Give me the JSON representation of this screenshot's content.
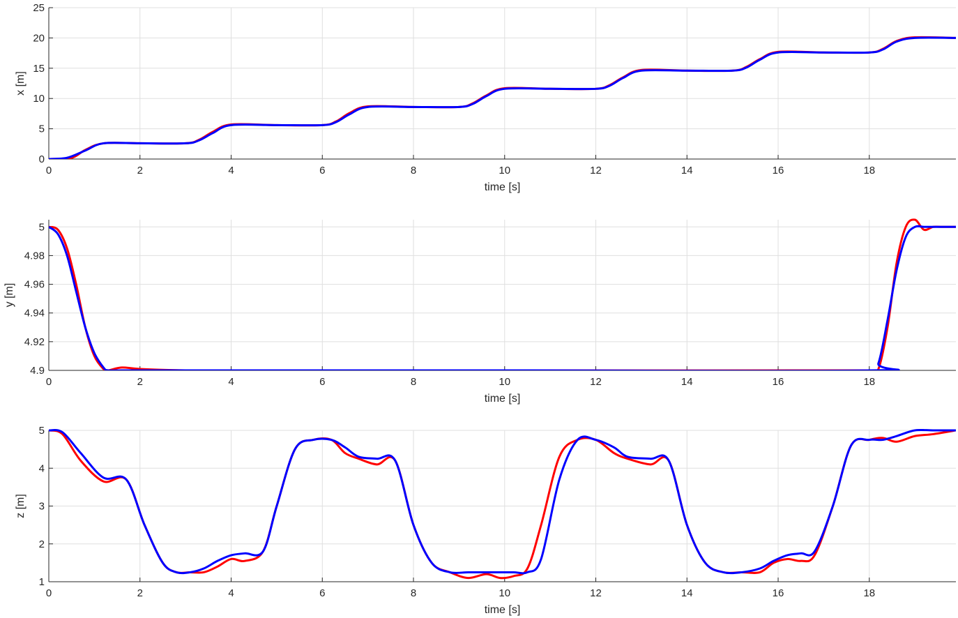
{
  "chart_data": [
    {
      "type": "line",
      "xlabel": "time [s]",
      "ylabel": "x [m]",
      "xlim": [
        0,
        19.9
      ],
      "ylim": [
        0,
        25
      ],
      "xticks": [
        0,
        2,
        4,
        6,
        8,
        10,
        12,
        14,
        16,
        18
      ],
      "yticks": [
        0,
        5,
        10,
        15,
        20,
        25
      ],
      "xtick_labels": [
        "0",
        "2",
        "4",
        "6",
        "8",
        "10",
        "12",
        "14",
        "16",
        "18"
      ],
      "ytick_labels": [
        "0",
        "5",
        "10",
        "15",
        "20",
        "25"
      ],
      "grid": true,
      "series": [
        {
          "color": "#ff0000",
          "x": [
            0,
            0.5,
            0.8,
            1.2,
            2,
            3,
            3.3,
            3.6,
            4,
            5,
            6,
            6.3,
            6.6,
            7,
            8,
            9,
            9.3,
            9.6,
            10,
            11,
            12,
            12.3,
            12.6,
            13,
            14,
            15,
            15.3,
            15.6,
            16,
            17,
            18,
            18.3,
            18.6,
            19,
            19.9
          ],
          "y": [
            0,
            0.2,
            1.5,
            2.6,
            2.6,
            2.6,
            3.2,
            4.5,
            5.7,
            5.6,
            5.6,
            6.2,
            7.6,
            8.7,
            8.6,
            8.6,
            9.2,
            10.5,
            11.7,
            11.6,
            11.6,
            12.2,
            13.5,
            14.7,
            14.6,
            14.6,
            15.2,
            16.5,
            17.7,
            17.6,
            17.6,
            18.2,
            19.5,
            20.1,
            20
          ]
        },
        {
          "color": "#0000ff",
          "x": [
            0,
            0.4,
            0.8,
            1.2,
            2,
            3,
            3.3,
            3.6,
            4,
            5,
            6,
            6.3,
            6.6,
            7,
            8,
            9,
            9.3,
            9.6,
            10,
            11,
            12,
            12.3,
            12.6,
            13,
            14,
            15,
            15.3,
            15.6,
            16,
            17,
            18,
            18.3,
            18.6,
            19,
            19.9
          ],
          "y": [
            0,
            0.2,
            1.4,
            2.6,
            2.6,
            2.6,
            3.1,
            4.3,
            5.6,
            5.6,
            5.6,
            6.1,
            7.4,
            8.6,
            8.6,
            8.6,
            9.1,
            10.4,
            11.6,
            11.6,
            11.6,
            12.1,
            13.4,
            14.6,
            14.6,
            14.6,
            15.1,
            16.4,
            17.6,
            17.6,
            17.6,
            18.1,
            19.4,
            20,
            20
          ]
        }
      ]
    },
    {
      "type": "line",
      "xlabel": "time [s]",
      "ylabel": "y [m]",
      "xlim": [
        0,
        19.9
      ],
      "ylim": [
        4.9,
        5.005
      ],
      "xticks": [
        0,
        2,
        4,
        6,
        8,
        10,
        12,
        14,
        16,
        18
      ],
      "yticks": [
        4.9,
        4.92,
        4.94,
        4.96,
        4.98,
        5
      ],
      "xtick_labels": [
        "0",
        "2",
        "4",
        "6",
        "8",
        "10",
        "12",
        "14",
        "16",
        "18"
      ],
      "ytick_labels": [
        "4.9",
        "4.92",
        "4.94",
        "4.96",
        "4.98",
        "5"
      ],
      "grid": true,
      "series": [
        {
          "color": "#ff0000",
          "x": [
            0,
            0.2,
            0.4,
            0.6,
            0.8,
            1.0,
            1.2,
            1.3,
            1.6,
            2,
            3,
            4,
            10,
            18,
            18.2,
            18.4,
            18.6,
            18.8,
            19.0,
            19.2,
            19.4,
            19.6,
            19.9
          ],
          "y": [
            5,
            4.998,
            4.985,
            4.96,
            4.93,
            4.91,
            4.901,
            4.9,
            4.902,
            4.901,
            4.9,
            4.9,
            4.9,
            4.9,
            4.901,
            4.93,
            4.975,
            5.0,
            5.005,
            4.998,
            5.0,
            5,
            5
          ]
        },
        {
          "color": "#0000ff",
          "x": [
            0,
            0.2,
            0.4,
            0.6,
            0.8,
            1.0,
            1.2,
            1.3,
            1.6,
            2,
            3,
            4,
            10,
            18,
            18.2,
            18.4,
            18.6,
            18.8,
            19.0,
            19.2,
            19.4,
            19.6,
            19.9
          ],
          "y": [
            5,
            4.995,
            4.98,
            4.955,
            4.93,
            4.912,
            4.902,
            4.9,
            4.9,
            4.9,
            4.9,
            4.9,
            4.9,
            4.9,
            4.905,
            4.935,
            4.97,
            4.993,
            5,
            5,
            5,
            5,
            5
          ]
        }
      ]
    },
    {
      "type": "line",
      "xlabel": "time [s]",
      "ylabel": "z [m]",
      "xlim": [
        0,
        19.9
      ],
      "ylim": [
        1,
        5
      ],
      "xticks": [
        0,
        2,
        4,
        6,
        8,
        10,
        12,
        14,
        16,
        18
      ],
      "yticks": [
        1,
        2,
        3,
        4,
        5
      ],
      "xtick_labels": [
        "0",
        "2",
        "4",
        "6",
        "8",
        "10",
        "12",
        "14",
        "16",
        "18"
      ],
      "ytick_labels": [
        "1",
        "2",
        "3",
        "4",
        "5"
      ],
      "grid": true,
      "series": [
        {
          "color": "#ff0000",
          "x": [
            0,
            0.3,
            0.7,
            1.2,
            1.7,
            2.1,
            2.5,
            2.8,
            3.1,
            3.4,
            3.7,
            4.0,
            4.3,
            4.7,
            5.0,
            5.4,
            5.8,
            6.2,
            6.5,
            6.8,
            7.2,
            7.6,
            8.0,
            8.4,
            8.8,
            9.2,
            9.6,
            9.9,
            10.2,
            10.5,
            10.8,
            11.2,
            11.6,
            12.0,
            12.4,
            12.7,
            13.2,
            13.6,
            14.0,
            14.4,
            14.8,
            15.2,
            15.6,
            15.9,
            16.2,
            16.5,
            16.8,
            17.2,
            17.6,
            18.0,
            18.3,
            18.6,
            19.0,
            19.4,
            19.9
          ],
          "y": [
            5,
            4.9,
            4.2,
            3.65,
            3.7,
            2.5,
            1.5,
            1.25,
            1.25,
            1.25,
            1.4,
            1.6,
            1.55,
            1.8,
            3.0,
            4.5,
            4.75,
            4.75,
            4.4,
            4.25,
            4.1,
            4.2,
            2.5,
            1.5,
            1.25,
            1.1,
            1.2,
            1.1,
            1.15,
            1.35,
            2.5,
            4.3,
            4.75,
            4.75,
            4.4,
            4.25,
            4.1,
            4.2,
            2.5,
            1.5,
            1.25,
            1.25,
            1.25,
            1.5,
            1.6,
            1.55,
            1.7,
            3.0,
            4.6,
            4.75,
            4.8,
            4.7,
            4.85,
            4.9,
            5
          ]
        },
        {
          "color": "#0000ff",
          "x": [
            0,
            0.3,
            0.7,
            1.2,
            1.7,
            2.1,
            2.5,
            2.8,
            3.1,
            3.4,
            3.7,
            4.0,
            4.3,
            4.7,
            5.0,
            5.4,
            5.8,
            6.2,
            6.5,
            6.8,
            7.2,
            7.6,
            8.0,
            8.4,
            8.8,
            9.2,
            9.6,
            9.9,
            10.2,
            10.5,
            10.8,
            11.2,
            11.6,
            12.0,
            12.4,
            12.7,
            13.2,
            13.6,
            14.0,
            14.4,
            14.8,
            15.2,
            15.6,
            15.9,
            16.2,
            16.5,
            16.8,
            17.2,
            17.6,
            18.0,
            18.3,
            18.6,
            19.0,
            19.4,
            19.9
          ],
          "y": [
            5,
            4.95,
            4.4,
            3.75,
            3.7,
            2.5,
            1.5,
            1.25,
            1.25,
            1.35,
            1.55,
            1.7,
            1.75,
            1.8,
            3.0,
            4.5,
            4.75,
            4.75,
            4.55,
            4.3,
            4.25,
            4.2,
            2.5,
            1.5,
            1.25,
            1.25,
            1.25,
            1.25,
            1.25,
            1.25,
            1.6,
            3.7,
            4.75,
            4.75,
            4.55,
            4.3,
            4.25,
            4.2,
            2.5,
            1.5,
            1.25,
            1.25,
            1.35,
            1.55,
            1.7,
            1.75,
            1.8,
            3.0,
            4.6,
            4.75,
            4.75,
            4.85,
            5.0,
            5.0,
            5
          ]
        }
      ]
    }
  ]
}
